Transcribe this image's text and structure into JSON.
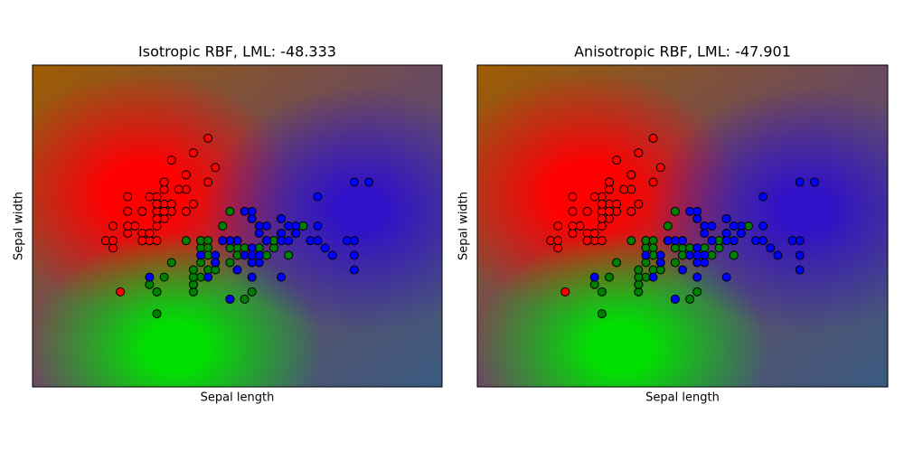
{
  "chart_data": [
    {
      "type": "scatter",
      "title": "Isotropic RBF, LML: -48.333",
      "x_label": "Sepal length",
      "y_label": "Sepal width",
      "xlim": [
        3.3,
        8.9
      ],
      "ylim": [
        1.0,
        5.4
      ],
      "series": [
        {
          "color": "#ff0000",
          "x": [
            5.1,
            4.9,
            4.7,
            4.6,
            5.0,
            5.4,
            4.6,
            5.0,
            4.4,
            4.9,
            5.4,
            4.8,
            4.8,
            4.3,
            5.8,
            5.7,
            5.4,
            5.1,
            5.7,
            5.1,
            5.4,
            5.1,
            4.6,
            5.1,
            4.8,
            5.0,
            5.0,
            5.2,
            5.2,
            4.7,
            4.8,
            5.4,
            5.2,
            5.5,
            4.9,
            5.0,
            5.5,
            4.9,
            4.4,
            5.1,
            5.0,
            4.5,
            4.4,
            5.0,
            5.1,
            4.8,
            5.1,
            4.6,
            5.3,
            5.0
          ],
          "values": [
            3.5,
            3.0,
            3.2,
            3.1,
            3.6,
            3.9,
            3.4,
            3.4,
            2.9,
            3.1,
            3.7,
            3.4,
            3.0,
            3.0,
            4.0,
            4.4,
            3.9,
            3.5,
            3.8,
            3.8,
            3.4,
            3.7,
            3.6,
            3.3,
            3.4,
            3.0,
            3.4,
            3.5,
            3.4,
            3.2,
            3.1,
            3.4,
            4.1,
            4.2,
            3.1,
            3.2,
            3.5,
            3.6,
            3.0,
            3.4,
            3.5,
            2.3,
            3.2,
            3.5,
            3.8,
            3.0,
            3.8,
            3.2,
            3.7,
            3.3
          ]
        },
        {
          "color": "#008000",
          "x": [
            7.0,
            6.4,
            6.9,
            5.5,
            6.5,
            5.7,
            6.3,
            4.9,
            6.6,
            5.2,
            5.0,
            5.9,
            6.0,
            6.1,
            5.6,
            6.7,
            5.6,
            5.8,
            6.2,
            5.6,
            5.9,
            6.1,
            6.3,
            6.1,
            6.4,
            6.6,
            6.8,
            6.7,
            6.0,
            5.7,
            5.5,
            5.5,
            5.8,
            6.0,
            5.4,
            6.0,
            6.7,
            6.3,
            5.6,
            5.5,
            5.5,
            6.1,
            5.8,
            5.0,
            5.6,
            5.7,
            5.7,
            6.2,
            5.1,
            5.7
          ],
          "values": [
            3.2,
            3.2,
            3.1,
            2.3,
            2.8,
            2.8,
            3.3,
            2.4,
            2.9,
            2.7,
            2.0,
            3.0,
            2.2,
            2.9,
            2.9,
            3.1,
            3.0,
            2.7,
            2.2,
            2.5,
            3.2,
            2.8,
            2.5,
            2.8,
            2.9,
            3.0,
            2.8,
            3.0,
            2.9,
            2.6,
            2.4,
            2.4,
            2.7,
            2.7,
            3.0,
            3.4,
            3.1,
            2.3,
            3.0,
            2.5,
            2.6,
            3.0,
            2.6,
            2.3,
            2.7,
            3.0,
            2.9,
            2.9,
            2.5,
            2.8
          ]
        },
        {
          "color": "#0000ff",
          "x": [
            6.3,
            5.8,
            7.1,
            6.3,
            6.5,
            7.6,
            4.9,
            7.3,
            6.7,
            7.2,
            6.5,
            6.4,
            6.8,
            5.7,
            5.8,
            6.4,
            6.5,
            7.7,
            7.7,
            6.0,
            6.9,
            5.6,
            7.7,
            6.3,
            6.7,
            7.2,
            6.2,
            6.1,
            6.4,
            7.2,
            7.4,
            7.9,
            6.4,
            6.3,
            6.1,
            7.7,
            6.3,
            6.4,
            6.0,
            6.9,
            6.7,
            6.9,
            5.8,
            6.8,
            6.7,
            6.7,
            6.3,
            6.5,
            6.2,
            5.9
          ],
          "values": [
            3.3,
            2.7,
            3.0,
            2.9,
            3.0,
            3.0,
            2.5,
            2.9,
            2.5,
            3.6,
            3.2,
            2.7,
            3.0,
            2.5,
            2.8,
            3.2,
            3.0,
            3.8,
            2.6,
            2.2,
            3.2,
            2.8,
            2.8,
            2.7,
            3.3,
            3.2,
            2.8,
            3.0,
            2.8,
            3.0,
            2.8,
            3.8,
            2.8,
            2.8,
            2.6,
            3.0,
            3.4,
            3.1,
            3.0,
            3.1,
            3.1,
            3.1,
            2.7,
            3.2,
            3.3,
            3.0,
            2.5,
            3.0,
            3.4,
            3.0
          ]
        }
      ]
    },
    {
      "type": "scatter",
      "title": "Anisotropic RBF, LML: -47.901",
      "x_label": "Sepal length",
      "y_label": "Sepal width",
      "xlim": [
        3.3,
        8.9
      ],
      "ylim": [
        1.0,
        5.4
      ],
      "series": [
        {
          "color": "#ff0000",
          "x": [
            5.1,
            4.9,
            4.7,
            4.6,
            5.0,
            5.4,
            4.6,
            5.0,
            4.4,
            4.9,
            5.4,
            4.8,
            4.8,
            4.3,
            5.8,
            5.7,
            5.4,
            5.1,
            5.7,
            5.1,
            5.4,
            5.1,
            4.6,
            5.1,
            4.8,
            5.0,
            5.0,
            5.2,
            5.2,
            4.7,
            4.8,
            5.4,
            5.2,
            5.5,
            4.9,
            5.0,
            5.5,
            4.9,
            4.4,
            5.1,
            5.0,
            4.5,
            4.4,
            5.0,
            5.1,
            4.8,
            5.1,
            4.6,
            5.3,
            5.0
          ],
          "values": [
            3.5,
            3.0,
            3.2,
            3.1,
            3.6,
            3.9,
            3.4,
            3.4,
            2.9,
            3.1,
            3.7,
            3.4,
            3.0,
            3.0,
            4.0,
            4.4,
            3.9,
            3.5,
            3.8,
            3.8,
            3.4,
            3.7,
            3.6,
            3.3,
            3.4,
            3.0,
            3.4,
            3.5,
            3.4,
            3.2,
            3.1,
            3.4,
            4.1,
            4.2,
            3.1,
            3.2,
            3.5,
            3.6,
            3.0,
            3.4,
            3.5,
            2.3,
            3.2,
            3.5,
            3.8,
            3.0,
            3.8,
            3.2,
            3.7,
            3.3
          ]
        },
        {
          "color": "#008000",
          "x": [
            7.0,
            6.4,
            6.9,
            5.5,
            6.5,
            5.7,
            6.3,
            4.9,
            6.6,
            5.2,
            5.0,
            5.9,
            6.0,
            6.1,
            5.6,
            6.7,
            5.6,
            5.8,
            6.2,
            5.6,
            5.9,
            6.1,
            6.3,
            6.1,
            6.4,
            6.6,
            6.8,
            6.7,
            6.0,
            5.7,
            5.5,
            5.5,
            5.8,
            6.0,
            5.4,
            6.0,
            6.7,
            6.3,
            5.6,
            5.5,
            5.5,
            6.1,
            5.8,
            5.0,
            5.6,
            5.7,
            5.7,
            6.2,
            5.1,
            5.7
          ],
          "values": [
            3.2,
            3.2,
            3.1,
            2.3,
            2.8,
            2.8,
            3.3,
            2.4,
            2.9,
            2.7,
            2.0,
            3.0,
            2.2,
            2.9,
            2.9,
            3.1,
            3.0,
            2.7,
            2.2,
            2.5,
            3.2,
            2.8,
            2.5,
            2.8,
            2.9,
            3.0,
            2.8,
            3.0,
            2.9,
            2.6,
            2.4,
            2.4,
            2.7,
            2.7,
            3.0,
            3.4,
            3.1,
            2.3,
            3.0,
            2.5,
            2.6,
            3.0,
            2.6,
            2.3,
            2.7,
            3.0,
            2.9,
            2.9,
            2.5,
            2.8
          ]
        },
        {
          "color": "#0000ff",
          "x": [
            6.3,
            5.8,
            7.1,
            6.3,
            6.5,
            7.6,
            4.9,
            7.3,
            6.7,
            7.2,
            6.5,
            6.4,
            6.8,
            5.7,
            5.8,
            6.4,
            6.5,
            7.7,
            7.7,
            6.0,
            6.9,
            5.6,
            7.7,
            6.3,
            6.7,
            7.2,
            6.2,
            6.1,
            6.4,
            7.2,
            7.4,
            7.9,
            6.4,
            6.3,
            6.1,
            7.7,
            6.3,
            6.4,
            6.0,
            6.9,
            6.7,
            6.9,
            5.8,
            6.8,
            6.7,
            6.7,
            6.3,
            6.5,
            6.2,
            5.9
          ],
          "values": [
            3.3,
            2.7,
            3.0,
            2.9,
            3.0,
            3.0,
            2.5,
            2.9,
            2.5,
            3.6,
            3.2,
            2.7,
            3.0,
            2.5,
            2.8,
            3.2,
            3.0,
            3.8,
            2.6,
            2.2,
            3.2,
            2.8,
            2.8,
            2.7,
            3.3,
            3.2,
            2.8,
            3.0,
            2.8,
            3.0,
            2.8,
            3.8,
            2.8,
            2.8,
            2.6,
            3.0,
            3.4,
            3.1,
            3.0,
            3.1,
            3.1,
            3.1,
            2.7,
            3.2,
            3.3,
            3.0,
            2.5,
            3.0,
            3.4,
            3.0
          ]
        }
      ]
    }
  ]
}
